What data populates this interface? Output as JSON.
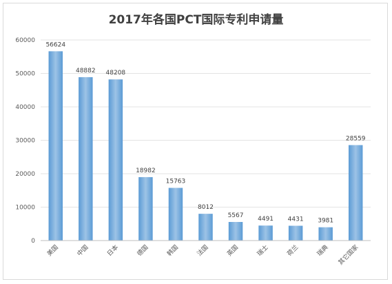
{
  "chart_data": {
    "type": "bar",
    "title": "2017年各国PCT国际专利申请量",
    "categories": [
      "美国",
      "中国",
      "日本",
      "德国",
      "韩国",
      "法国",
      "英国",
      "瑞士",
      "荷兰",
      "瑞典",
      "其它国家"
    ],
    "values": [
      56624,
      48882,
      48208,
      18982,
      15763,
      8012,
      5567,
      4491,
      4431,
      3981,
      28559
    ],
    "ylim": [
      0,
      60000
    ],
    "yticks": [
      0,
      10000,
      20000,
      30000,
      40000,
      50000,
      60000
    ],
    "grid": true,
    "legend": "none",
    "bar_color": "#5b9bd5",
    "bar_color_light": "#9dc3e6"
  }
}
